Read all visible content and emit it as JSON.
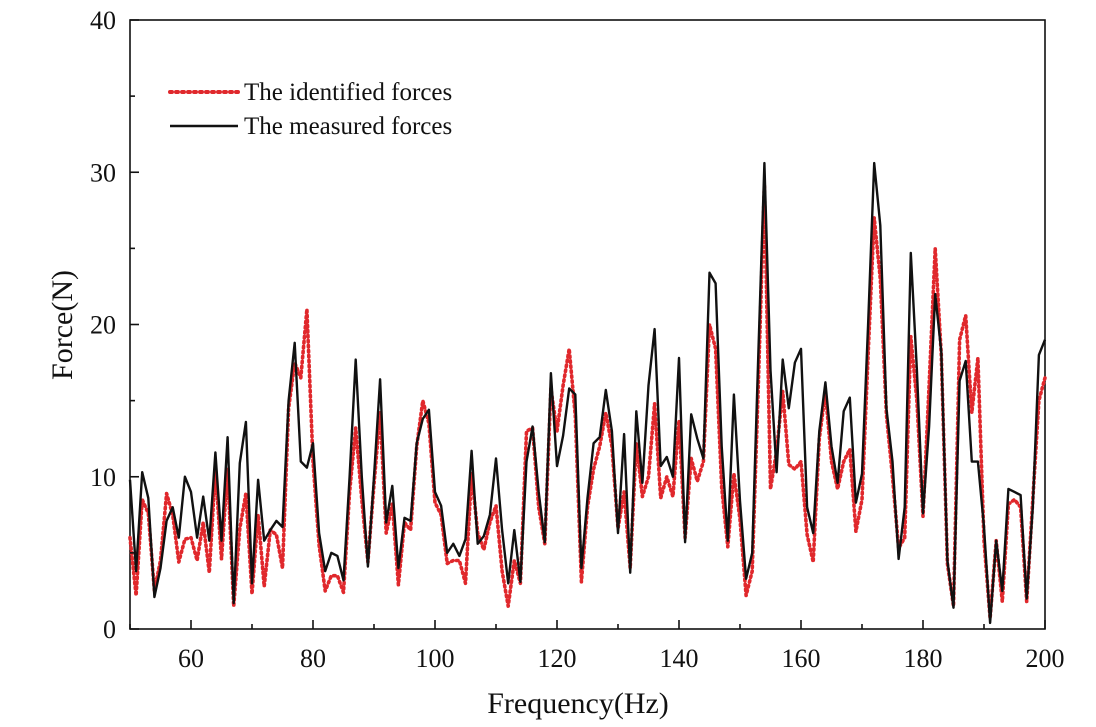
{
  "chart_data": {
    "type": "line",
    "xlabel": "Frequency(Hz)",
    "ylabel": "Force(N)",
    "xlim": [
      50,
      200
    ],
    "ylim": [
      0,
      40
    ],
    "xticks": [
      60,
      80,
      100,
      120,
      140,
      160,
      180,
      200
    ],
    "yticks": [
      0,
      10,
      20,
      30,
      40
    ],
    "grid": false,
    "legend_position": "top-left",
    "x": [
      50,
      51,
      52,
      53,
      54,
      55,
      56,
      57,
      58,
      59,
      60,
      61,
      62,
      63,
      64,
      65,
      66,
      67,
      68,
      69,
      70,
      71,
      72,
      73,
      74,
      75,
      76,
      77,
      78,
      79,
      80,
      81,
      82,
      83,
      84,
      85,
      86,
      87,
      88,
      89,
      90,
      91,
      92,
      93,
      94,
      95,
      96,
      97,
      98,
      99,
      100,
      101,
      102,
      103,
      104,
      105,
      106,
      107,
      108,
      109,
      110,
      111,
      112,
      113,
      114,
      115,
      116,
      117,
      118,
      119,
      120,
      121,
      122,
      123,
      124,
      125,
      126,
      127,
      128,
      129,
      130,
      131,
      132,
      133,
      134,
      135,
      136,
      137,
      138,
      139,
      140,
      141,
      142,
      143,
      144,
      145,
      146,
      147,
      148,
      149,
      150,
      151,
      152,
      153,
      154,
      155,
      156,
      157,
      158,
      159,
      160,
      161,
      162,
      163,
      164,
      165,
      166,
      167,
      168,
      169,
      170,
      171,
      172,
      173,
      174,
      175,
      176,
      177,
      178,
      179,
      180,
      181,
      182,
      183,
      184,
      185,
      186,
      187,
      188,
      189,
      190,
      191,
      192,
      193,
      194,
      195,
      196,
      197,
      198,
      199,
      200
    ],
    "series": [
      {
        "name": "The measured forces",
        "color": "#111111",
        "style": "solid",
        "values": [
          9.8,
          3.8,
          10.3,
          8.6,
          2.1,
          4.0,
          7.1,
          8.0,
          6.0,
          10.0,
          9.0,
          6.0,
          8.7,
          5.8,
          11.6,
          5.8,
          12.6,
          1.7,
          10.9,
          13.6,
          3.0,
          9.8,
          5.8,
          6.5,
          7.1,
          6.7,
          15.0,
          18.8,
          11.0,
          10.6,
          12.2,
          6.3,
          3.8,
          5.0,
          4.8,
          3.2,
          10.0,
          17.7,
          10.0,
          4.1,
          10.0,
          16.4,
          7.0,
          9.4,
          4.0,
          7.3,
          7.1,
          12.2,
          13.8,
          14.4,
          9.0,
          8.1,
          5.0,
          5.6,
          4.8,
          5.9,
          11.7,
          5.6,
          6.1,
          7.5,
          11.2,
          6.5,
          3.0,
          6.5,
          3.1,
          11.0,
          13.3,
          9.0,
          5.7,
          16.8,
          10.7,
          12.7,
          15.8,
          15.4,
          4.0,
          8.6,
          12.2,
          12.6,
          15.7,
          13.0,
          6.3,
          12.8,
          3.7,
          14.3,
          9.6,
          16.0,
          19.7,
          10.7,
          11.3,
          10.0,
          17.8,
          5.7,
          14.1,
          12.5,
          11.2,
          23.4,
          22.7,
          12.0,
          5.8,
          15.4,
          8.4,
          3.3,
          5.0,
          18.0,
          30.6,
          17.0,
          10.3,
          17.7,
          14.5,
          17.5,
          18.4,
          8.0,
          6.3,
          13.0,
          16.2,
          12.0,
          9.6,
          14.3,
          15.2,
          8.3,
          10.2,
          20.0,
          30.6,
          26.5,
          14.5,
          11.0,
          4.6,
          8.0,
          24.7,
          17.0,
          7.6,
          13.3,
          22.0,
          18.2,
          4.5,
          1.4,
          16.3,
          17.6,
          11.0,
          11.0,
          6.7,
          0.4,
          5.8,
          2.5,
          9.2,
          9.0,
          8.8,
          2.0,
          8.0,
          18.0,
          19.0
        ]
      },
      {
        "name": "The identified forces",
        "color": "#e0282c",
        "style": "dotted",
        "values": [
          6.0,
          2.2,
          8.5,
          7.6,
          2.5,
          4.5,
          8.9,
          7.5,
          4.4,
          5.9,
          6.0,
          4.5,
          7.0,
          3.7,
          10.5,
          4.6,
          10.5,
          1.5,
          6.6,
          8.9,
          2.3,
          7.5,
          2.8,
          6.5,
          6.2,
          4.0,
          14.5,
          17.5,
          16.5,
          21.0,
          11.0,
          5.5,
          2.5,
          3.5,
          3.5,
          2.4,
          9.0,
          13.2,
          8.5,
          4.4,
          9.5,
          14.2,
          6.3,
          8.2,
          2.9,
          7.0,
          6.5,
          12.0,
          15.0,
          13.5,
          8.3,
          7.5,
          4.3,
          4.5,
          4.5,
          3.0,
          10.2,
          6.3,
          5.2,
          7.0,
          8.1,
          3.8,
          1.5,
          4.5,
          3.0,
          13.0,
          13.2,
          8.0,
          5.6,
          15.8,
          13.0,
          16.0,
          18.4,
          14.0,
          3.1,
          8.0,
          10.5,
          12.0,
          14.2,
          12.0,
          6.6,
          9.0,
          4.0,
          12.2,
          8.7,
          10.0,
          14.8,
          8.6,
          10.0,
          8.7,
          13.7,
          6.0,
          11.2,
          9.7,
          11.0,
          20.0,
          18.4,
          9.3,
          5.4,
          10.2,
          7.2,
          2.2,
          3.8,
          16.0,
          29.2,
          9.2,
          11.7,
          15.6,
          10.8,
          10.5,
          11.0,
          6.2,
          4.4,
          12.5,
          15.6,
          11.0,
          9.2,
          11.0,
          11.8,
          6.4,
          8.5,
          18.0,
          27.0,
          23.0,
          14.1,
          10.0,
          5.3,
          6.0,
          19.2,
          15.0,
          7.4,
          16.0,
          25.0,
          18.0,
          4.3,
          1.5,
          19.0,
          20.6,
          14.2,
          17.8,
          5.8,
          0.7,
          5.8,
          1.8,
          8.2,
          8.5,
          8.0,
          1.8,
          8.5,
          15.0,
          16.5
        ]
      }
    ]
  }
}
